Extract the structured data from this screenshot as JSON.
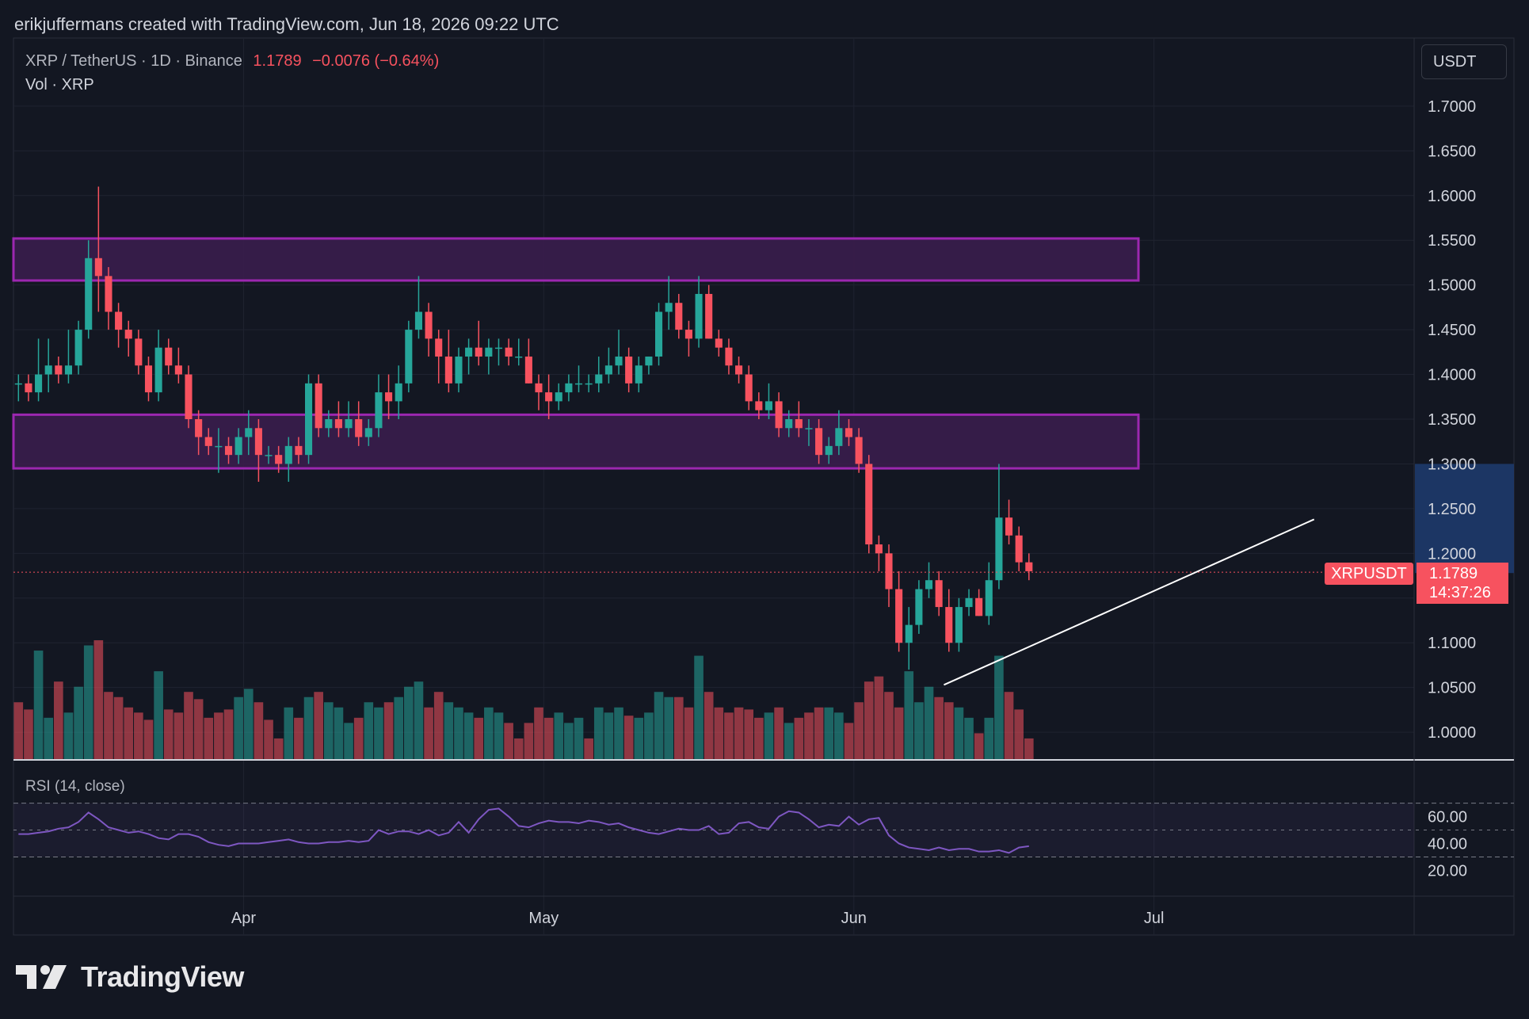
{
  "header": {
    "attribution": "erikjuffermans created with TradingView.com, Jun 18, 2026 09:22 UTC"
  },
  "legend": {
    "symbol": "XRP / TetherUS · 1D · Binance",
    "last": "1.1789",
    "change": "−0.0076 (−0.64%)",
    "volume_label": "Vol · XRP"
  },
  "currency_button": "USDT",
  "price_tag": {
    "symbol": "XRPUSDT",
    "price": "1.1789",
    "countdown": "14:37:26"
  },
  "rsi_title": "RSI (14, close)",
  "footer": {
    "brand": "TradingView"
  },
  "colors": {
    "background": "#131722",
    "up": "#26a69a",
    "down": "#f7525f",
    "zone_fill": "#3a1d4d",
    "zone_border": "#9c27b0",
    "rsi_line": "#7e57c2",
    "trendline": "#ffffff",
    "axis_highlight": "#1e3a6b"
  },
  "icons": {
    "logo": "tradingview-logo-icon"
  },
  "chart_data": {
    "type": "candlestick",
    "symbol": "XRP / TetherUS",
    "timeframe": "1D",
    "exchange": "Binance",
    "x_labels": [
      "Apr",
      "May",
      "Jun",
      "Jul"
    ],
    "x_label_day_index": [
      23,
      53,
      84,
      114
    ],
    "y_ticks": [
      1.0,
      1.05,
      1.1,
      1.15,
      1.2,
      1.25,
      1.3,
      1.35,
      1.4,
      1.45,
      1.5,
      1.55,
      1.6,
      1.65,
      1.7
    ],
    "y_tick_labels": [
      "1.0000",
      "1.0500",
      "1.1000",
      "1.1500",
      "1.2000",
      "1.2500",
      "1.3000",
      "1.3500",
      "1.4000",
      "1.4500",
      "1.5000",
      "1.5500",
      "1.6000",
      "1.6500",
      "1.7000"
    ],
    "ylim": [
      0.97,
      1.73
    ],
    "xlim_days": [
      0,
      140
    ],
    "grid": true,
    "last_price": 1.1789,
    "candles": [
      [
        1.39,
        1.4,
        1.37,
        1.39
      ],
      [
        1.39,
        1.4,
        1.37,
        1.38
      ],
      [
        1.38,
        1.44,
        1.37,
        1.4
      ],
      [
        1.4,
        1.44,
        1.38,
        1.41
      ],
      [
        1.41,
        1.42,
        1.39,
        1.4
      ],
      [
        1.4,
        1.45,
        1.39,
        1.41
      ],
      [
        1.41,
        1.46,
        1.4,
        1.45
      ],
      [
        1.45,
        1.55,
        1.44,
        1.53
      ],
      [
        1.53,
        1.61,
        1.47,
        1.51
      ],
      [
        1.51,
        1.52,
        1.45,
        1.47
      ],
      [
        1.47,
        1.48,
        1.43,
        1.45
      ],
      [
        1.45,
        1.46,
        1.42,
        1.44
      ],
      [
        1.44,
        1.45,
        1.4,
        1.41
      ],
      [
        1.41,
        1.42,
        1.37,
        1.38
      ],
      [
        1.38,
        1.45,
        1.37,
        1.43
      ],
      [
        1.43,
        1.44,
        1.4,
        1.41
      ],
      [
        1.41,
        1.43,
        1.39,
        1.4
      ],
      [
        1.4,
        1.41,
        1.34,
        1.35
      ],
      [
        1.35,
        1.36,
        1.31,
        1.33
      ],
      [
        1.33,
        1.34,
        1.31,
        1.32
      ],
      [
        1.32,
        1.34,
        1.29,
        1.32
      ],
      [
        1.32,
        1.33,
        1.3,
        1.31
      ],
      [
        1.31,
        1.34,
        1.3,
        1.33
      ],
      [
        1.33,
        1.36,
        1.31,
        1.34
      ],
      [
        1.34,
        1.35,
        1.28,
        1.31
      ],
      [
        1.31,
        1.32,
        1.3,
        1.31
      ],
      [
        1.31,
        1.32,
        1.29,
        1.3
      ],
      [
        1.3,
        1.33,
        1.28,
        1.32
      ],
      [
        1.32,
        1.33,
        1.3,
        1.31
      ],
      [
        1.31,
        1.4,
        1.3,
        1.39
      ],
      [
        1.39,
        1.4,
        1.33,
        1.34
      ],
      [
        1.34,
        1.36,
        1.33,
        1.35
      ],
      [
        1.35,
        1.37,
        1.33,
        1.34
      ],
      [
        1.34,
        1.37,
        1.33,
        1.35
      ],
      [
        1.35,
        1.37,
        1.32,
        1.33
      ],
      [
        1.33,
        1.35,
        1.32,
        1.34
      ],
      [
        1.34,
        1.4,
        1.33,
        1.38
      ],
      [
        1.38,
        1.4,
        1.35,
        1.37
      ],
      [
        1.37,
        1.41,
        1.35,
        1.39
      ],
      [
        1.39,
        1.46,
        1.38,
        1.45
      ],
      [
        1.45,
        1.51,
        1.44,
        1.47
      ],
      [
        1.47,
        1.48,
        1.42,
        1.44
      ],
      [
        1.44,
        1.45,
        1.39,
        1.42
      ],
      [
        1.42,
        1.45,
        1.38,
        1.39
      ],
      [
        1.39,
        1.43,
        1.38,
        1.42
      ],
      [
        1.42,
        1.44,
        1.4,
        1.43
      ],
      [
        1.43,
        1.46,
        1.41,
        1.42
      ],
      [
        1.42,
        1.44,
        1.4,
        1.43
      ],
      [
        1.43,
        1.44,
        1.41,
        1.43
      ],
      [
        1.43,
        1.44,
        1.41,
        1.42
      ],
      [
        1.42,
        1.44,
        1.41,
        1.42
      ],
      [
        1.42,
        1.44,
        1.39,
        1.39
      ],
      [
        1.39,
        1.4,
        1.36,
        1.38
      ],
      [
        1.38,
        1.4,
        1.35,
        1.37
      ],
      [
        1.37,
        1.39,
        1.36,
        1.38
      ],
      [
        1.38,
        1.4,
        1.37,
        1.39
      ],
      [
        1.39,
        1.41,
        1.38,
        1.39
      ],
      [
        1.39,
        1.4,
        1.38,
        1.39
      ],
      [
        1.39,
        1.42,
        1.38,
        1.4
      ],
      [
        1.4,
        1.43,
        1.39,
        1.41
      ],
      [
        1.41,
        1.45,
        1.4,
        1.42
      ],
      [
        1.42,
        1.43,
        1.38,
        1.39
      ],
      [
        1.39,
        1.42,
        1.38,
        1.41
      ],
      [
        1.41,
        1.42,
        1.4,
        1.42
      ],
      [
        1.42,
        1.48,
        1.41,
        1.47
      ],
      [
        1.47,
        1.51,
        1.45,
        1.48
      ],
      [
        1.48,
        1.49,
        1.44,
        1.45
      ],
      [
        1.45,
        1.46,
        1.42,
        1.44
      ],
      [
        1.44,
        1.51,
        1.43,
        1.49
      ],
      [
        1.49,
        1.5,
        1.44,
        1.44
      ],
      [
        1.44,
        1.45,
        1.42,
        1.43
      ],
      [
        1.43,
        1.44,
        1.4,
        1.41
      ],
      [
        1.41,
        1.42,
        1.39,
        1.4
      ],
      [
        1.4,
        1.41,
        1.36,
        1.37
      ],
      [
        1.37,
        1.38,
        1.35,
        1.36
      ],
      [
        1.36,
        1.39,
        1.35,
        1.37
      ],
      [
        1.37,
        1.38,
        1.33,
        1.34
      ],
      [
        1.34,
        1.36,
        1.33,
        1.35
      ],
      [
        1.35,
        1.37,
        1.33,
        1.34
      ],
      [
        1.34,
        1.35,
        1.32,
        1.34
      ],
      [
        1.34,
        1.35,
        1.3,
        1.31
      ],
      [
        1.31,
        1.33,
        1.3,
        1.32
      ],
      [
        1.32,
        1.36,
        1.31,
        1.34
      ],
      [
        1.34,
        1.35,
        1.32,
        1.33
      ],
      [
        1.33,
        1.34,
        1.29,
        1.3
      ],
      [
        1.3,
        1.31,
        1.2,
        1.21
      ],
      [
        1.21,
        1.22,
        1.18,
        1.2
      ],
      [
        1.2,
        1.21,
        1.14,
        1.16
      ],
      [
        1.16,
        1.18,
        1.09,
        1.1
      ],
      [
        1.1,
        1.14,
        1.07,
        1.12
      ],
      [
        1.12,
        1.17,
        1.11,
        1.16
      ],
      [
        1.16,
        1.19,
        1.15,
        1.17
      ],
      [
        1.17,
        1.18,
        1.13,
        1.14
      ],
      [
        1.14,
        1.16,
        1.09,
        1.1
      ],
      [
        1.1,
        1.15,
        1.09,
        1.14
      ],
      [
        1.14,
        1.16,
        1.13,
        1.15
      ],
      [
        1.15,
        1.16,
        1.13,
        1.13
      ],
      [
        1.13,
        1.19,
        1.12,
        1.17
      ],
      [
        1.17,
        1.3,
        1.16,
        1.24
      ],
      [
        1.24,
        1.26,
        1.21,
        1.22
      ],
      [
        1.22,
        1.23,
        1.18,
        1.19
      ],
      [
        1.19,
        1.2,
        1.17,
        1.18
      ]
    ],
    "volume_up": [
      false,
      false,
      true,
      true,
      false,
      true,
      true,
      true,
      false,
      false,
      false,
      false,
      false,
      false,
      true,
      false,
      false,
      false,
      false,
      false,
      false,
      false,
      true,
      true,
      false,
      false,
      false,
      true,
      false,
      true,
      false,
      true,
      true,
      true,
      false,
      true,
      true,
      false,
      true,
      true,
      true,
      false,
      false,
      true,
      true,
      true,
      false,
      true,
      true,
      false,
      false,
      false,
      false,
      false,
      true,
      true,
      true,
      false,
      true,
      true,
      true,
      false,
      true,
      true,
      true,
      true,
      false,
      false,
      true,
      false,
      false,
      false,
      false,
      false,
      false,
      true,
      false,
      true,
      false,
      false,
      false,
      true,
      true,
      false,
      false,
      false,
      false,
      false,
      false,
      true,
      true,
      true,
      false,
      false,
      true,
      true,
      false,
      true,
      true,
      false,
      false,
      false
    ],
    "volume": [
      55,
      48,
      105,
      40,
      75,
      45,
      70,
      110,
      115,
      65,
      60,
      50,
      45,
      38,
      85,
      48,
      45,
      65,
      58,
      40,
      45,
      48,
      60,
      68,
      55,
      38,
      20,
      50,
      40,
      60,
      65,
      55,
      50,
      35,
      40,
      55,
      50,
      55,
      60,
      70,
      75,
      50,
      65,
      55,
      50,
      45,
      40,
      50,
      45,
      35,
      20,
      35,
      50,
      40,
      45,
      35,
      40,
      20,
      50,
      45,
      50,
      42,
      40,
      45,
      65,
      60,
      60,
      50,
      100,
      65,
      50,
      45,
      50,
      48,
      40,
      45,
      50,
      35,
      40,
      45,
      50,
      50,
      45,
      35,
      55,
      75,
      80,
      65,
      50,
      85,
      55,
      70,
      60,
      55,
      50,
      40,
      25,
      40,
      100,
      65,
      48,
      20
    ],
    "trendline": {
      "from_day": 93,
      "from_price": 1.053,
      "to_day": 130,
      "to_price": 1.238
    },
    "zones": [
      {
        "from_price": 1.505,
        "to_price": 1.552,
        "from_day": 0,
        "to_day": 140
      },
      {
        "from_price": 1.295,
        "to_price": 1.355,
        "from_day": 0,
        "to_day": 140
      }
    ],
    "rsi": {
      "ticks": [
        20,
        40,
        60
      ],
      "tick_labels": [
        "20.00",
        "40.00",
        "60.00"
      ],
      "bands": [
        30,
        50,
        70
      ],
      "ylim": [
        12,
        78
      ],
      "values": [
        47,
        47,
        48,
        49,
        51,
        52,
        56,
        63,
        58,
        52,
        50,
        48,
        49,
        47,
        44,
        43,
        47,
        47,
        45,
        41,
        39,
        38,
        40,
        40,
        40,
        41,
        42,
        43,
        41,
        40,
        40,
        41,
        41,
        42,
        41,
        42,
        50,
        47,
        49,
        49,
        47,
        50,
        46,
        48,
        56,
        48,
        58,
        65,
        66,
        60,
        53,
        52,
        55,
        57,
        56,
        56,
        55,
        57,
        56,
        54,
        55,
        52,
        50,
        48,
        47,
        49,
        51,
        50,
        50,
        53,
        47,
        48,
        55,
        56,
        52,
        51,
        60,
        64,
        63,
        58,
        52,
        54,
        53,
        60,
        54,
        58,
        59,
        46,
        40,
        37,
        36,
        35,
        37,
        35,
        36,
        36,
        34,
        34,
        35,
        33,
        37,
        38
      ]
    }
  }
}
